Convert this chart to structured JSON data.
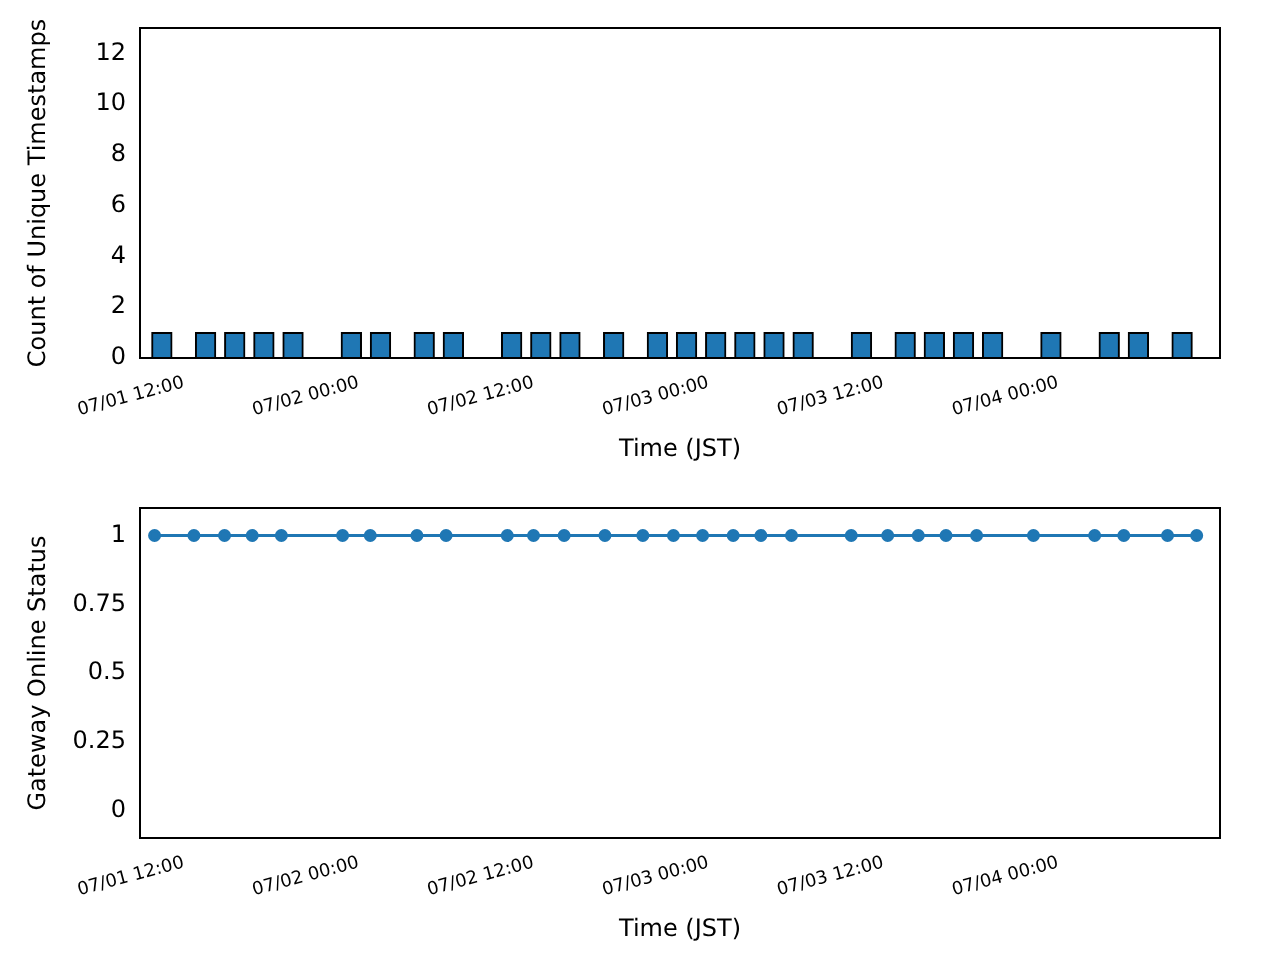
{
  "chart_data": [
    {
      "type": "bar",
      "xlabel": "Time (JST)",
      "ylabel": "Count of Unique Timestamps",
      "color": "#1f77b4",
      "x": [
        "--07-01T10:30",
        "--07-01T13:30",
        "--07-01T15:30",
        "--07-01T17:30",
        "--07-01T19:30",
        "--07-01T23:30",
        "--07-02T01:30",
        "--07-02T04:30",
        "--07-02T06:30",
        "--07-02T10:30",
        "--07-02T12:30",
        "--07-02T14:30",
        "--07-02T17:30",
        "--07-02T20:30",
        "--07-02T22:30",
        "--07-03T00:30",
        "--07-03T02:30",
        "--07-03T04:30",
        "--07-03T06:30",
        "--07-03T10:30",
        "--07-03T13:30",
        "--07-03T15:30",
        "--07-03T17:30",
        "--07-03T19:30",
        "--07-03T23:30",
        "--07-04T03:30",
        "--07-04T05:30",
        "--07-04T08:30"
      ],
      "values": [
        1,
        1,
        1,
        1,
        1,
        1,
        1,
        1,
        1,
        1,
        1,
        1,
        1,
        1,
        1,
        1,
        1,
        1,
        1,
        1,
        1,
        1,
        1,
        1,
        1,
        1,
        1,
        1
      ],
      "xlim": [
        "--07-01T09:00",
        "--07-04T11:06"
      ],
      "xticks": [
        {
          "value": "--07-01T12:00",
          "label": "07/01 12:00"
        },
        {
          "value": "--07-02T00:00",
          "label": "07/02 00:00"
        },
        {
          "value": "--07-02T12:00",
          "label": "07/02 12:00"
        },
        {
          "value": "--07-03T00:00",
          "label": "07/03 00:00"
        },
        {
          "value": "--07-03T12:00",
          "label": "07/03 12:00"
        },
        {
          "value": "--07-04T00:00",
          "label": "07/04 00:00"
        }
      ],
      "ylim": [
        0,
        13
      ],
      "yticks": [
        0,
        2,
        4,
        6,
        8,
        10,
        12
      ],
      "grid": false,
      "legend": false
    },
    {
      "type": "line",
      "xlabel": "Time (JST)",
      "ylabel": "Gateway Online Status",
      "color": "#1f77b4",
      "marker": "circle",
      "line_style": "solid",
      "x": [
        "--07-01T10:00",
        "--07-01T12:42",
        "--07-01T14:48",
        "--07-01T16:42",
        "--07-01T18:42",
        "--07-01T22:54",
        "--07-02T00:48",
        "--07-02T04:00",
        "--07-02T06:00",
        "--07-02T10:12",
        "--07-02T12:00",
        "--07-02T14:06",
        "--07-02T16:54",
        "--07-02T19:30",
        "--07-02T21:36",
        "--07-02T23:36",
        "--07-03T01:42",
        "--07-03T03:36",
        "--07-03T05:42",
        "--07-03T09:48",
        "--07-03T12:18",
        "--07-03T14:24",
        "--07-03T16:18",
        "--07-03T18:24",
        "--07-03T22:18",
        "--07-04T02:30",
        "--07-04T04:30",
        "--07-04T07:30",
        "--07-04T09:30"
      ],
      "values": [
        1,
        1,
        1,
        1,
        1,
        1,
        1,
        1,
        1,
        1,
        1,
        1,
        1,
        1,
        1,
        1,
        1,
        1,
        1,
        1,
        1,
        1,
        1,
        1,
        1,
        1,
        1,
        1,
        1
      ],
      "xlim": [
        "--07-01T09:00",
        "--07-04T11:06"
      ],
      "xticks": [
        {
          "value": "--07-01T12:00",
          "label": "07/01 12:00"
        },
        {
          "value": "--07-02T00:00",
          "label": "07/02 00:00"
        },
        {
          "value": "--07-02T12:00",
          "label": "07/02 12:00"
        },
        {
          "value": "--07-03T00:00",
          "label": "07/03 00:00"
        },
        {
          "value": "--07-03T12:00",
          "label": "07/03 12:00"
        },
        {
          "value": "--07-04T00:00",
          "label": "07/04 00:00"
        }
      ],
      "ylim": [
        -0.1,
        1.1
      ],
      "yticks": [
        0,
        0.25,
        0.5,
        0.75,
        1
      ],
      "grid": false,
      "legend": false
    }
  ]
}
